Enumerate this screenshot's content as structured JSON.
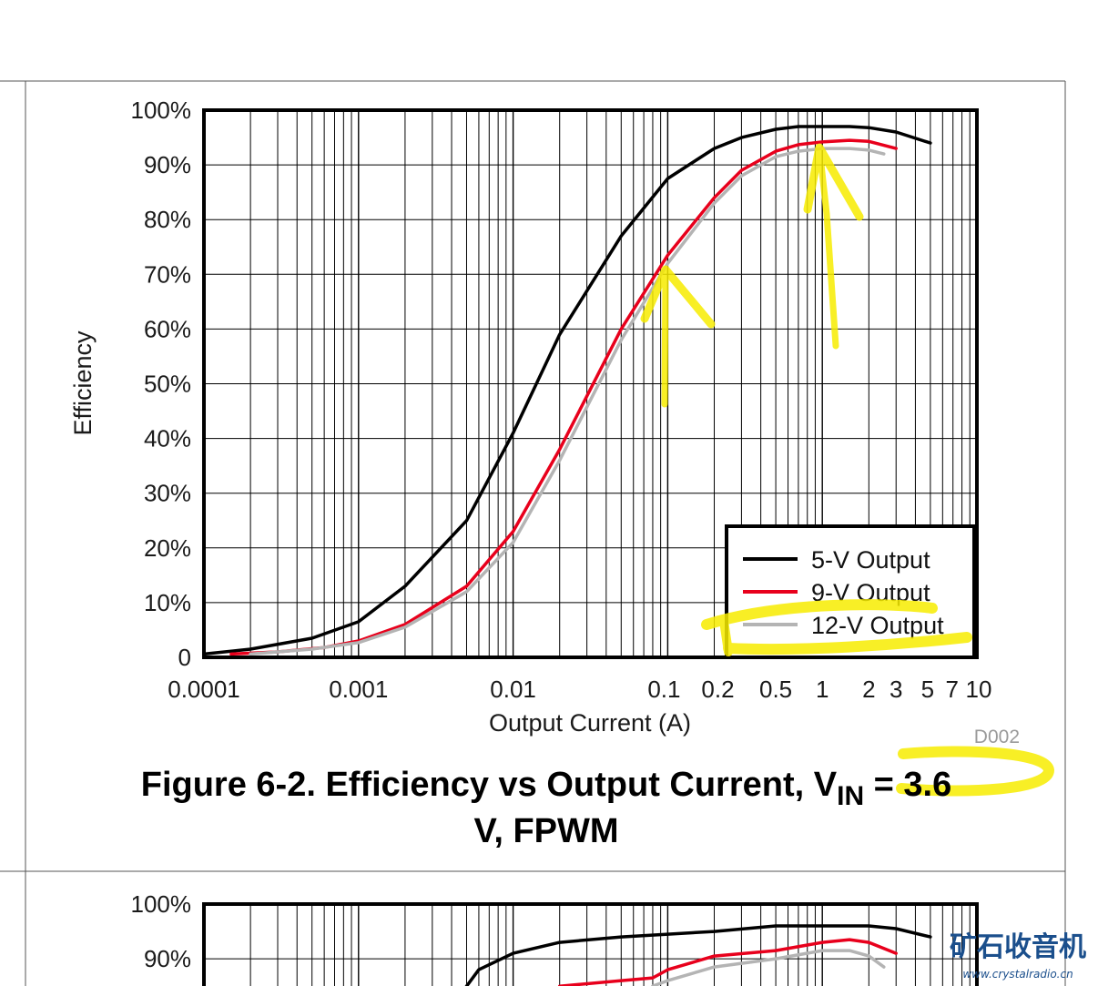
{
  "chart_data": [
    {
      "type": "line",
      "x_scale": "log",
      "xlim": [
        0.0001,
        10
      ],
      "ylim": [
        0,
        100
      ],
      "grid": true,
      "legend_position": "bottom-right",
      "xlabel": "Output Current (A)",
      "ylabel": "Efficiency",
      "x_tick_labels": [
        {
          "value": 0.0001,
          "label": "0.0001"
        },
        {
          "value": 0.001,
          "label": "0.001"
        },
        {
          "value": 0.01,
          "label": "0.01"
        },
        {
          "value": 0.1,
          "label": "0.1"
        },
        {
          "value": 0.2,
          "label": "0.2"
        },
        {
          "value": 0.5,
          "label": "0.5"
        },
        {
          "value": 1,
          "label": "1"
        },
        {
          "value": 2,
          "label": "2"
        },
        {
          "value": 3,
          "label": "3"
        },
        {
          "value": 5,
          "label": "5"
        },
        {
          "value": 7,
          "label": "7"
        },
        {
          "value": 10,
          "label": "10"
        }
      ],
      "y_tick_labels": [
        {
          "value": 0,
          "label": "0"
        },
        {
          "value": 10,
          "label": "10%"
        },
        {
          "value": 20,
          "label": "20%"
        },
        {
          "value": 30,
          "label": "30%"
        },
        {
          "value": 40,
          "label": "40%"
        },
        {
          "value": 50,
          "label": "50%"
        },
        {
          "value": 60,
          "label": "60%"
        },
        {
          "value": 70,
          "label": "70%"
        },
        {
          "value": 80,
          "label": "80%"
        },
        {
          "value": 90,
          "label": "90%"
        },
        {
          "value": 100,
          "label": "100%"
        }
      ],
      "series": [
        {
          "name": "5-V Output",
          "color": "#000000",
          "x": [
            0.0001,
            0.0002,
            0.0005,
            0.001,
            0.002,
            0.005,
            0.01,
            0.02,
            0.05,
            0.1,
            0.2,
            0.3,
            0.5,
            0.7,
            1,
            1.5,
            2,
            3,
            5
          ],
          "y": [
            0.6,
            1.5,
            3.5,
            6.5,
            13,
            25,
            41,
            59,
            77,
            87.5,
            93,
            95,
            96.5,
            97,
            97,
            97,
            96.8,
            96,
            94
          ]
        },
        {
          "name": "9-V Output",
          "color": "#e8001c",
          "x": [
            0.00015,
            0.0003,
            0.0006,
            0.001,
            0.002,
            0.005,
            0.01,
            0.02,
            0.05,
            0.1,
            0.2,
            0.3,
            0.5,
            0.7,
            1,
            1.5,
            2,
            3
          ],
          "y": [
            0.6,
            1.0,
            1.8,
            3,
            6,
            13,
            23,
            38,
            60,
            73.5,
            84,
            89,
            92.5,
            93.7,
            94.2,
            94.5,
            94.3,
            93
          ]
        },
        {
          "name": "12-V Output",
          "color": "#b4b4b4",
          "x": [
            0.0002,
            0.0005,
            0.001,
            0.002,
            0.005,
            0.01,
            0.02,
            0.05,
            0.1,
            0.2,
            0.3,
            0.5,
            0.7,
            1,
            1.5,
            2,
            2.5
          ],
          "y": [
            0.6,
            1.5,
            2.7,
            5.5,
            12,
            21,
            36,
            58,
            72,
            83,
            88,
            91.5,
            92.5,
            93,
            93,
            92.7,
            92
          ]
        }
      ]
    },
    {
      "type": "line",
      "x_scale": "log",
      "xlim": [
        0.0001,
        10
      ],
      "ylim": [
        0,
        100
      ],
      "grid": true,
      "y_tick_labels": [
        {
          "value": 100,
          "label": "100%"
        },
        {
          "value": 90,
          "label": "90%"
        }
      ],
      "series": [
        {
          "name": "5-V Output",
          "color": "#000000",
          "x": [
            0.005,
            0.006,
            0.01,
            0.02,
            0.05,
            0.1,
            0.2,
            0.5,
            1,
            2,
            3,
            5
          ],
          "y": [
            85,
            88,
            91,
            93,
            94,
            94.5,
            95,
            96,
            96,
            96,
            95.5,
            94
          ]
        },
        {
          "name": "9-V Output",
          "color": "#e8001c",
          "x": [
            0.02,
            0.05,
            0.08,
            0.1,
            0.2,
            0.5,
            1,
            1.5,
            2,
            3
          ],
          "y": [
            85,
            86,
            86.5,
            88,
            90.5,
            91.5,
            93,
            93.5,
            93,
            91
          ]
        },
        {
          "name": "12-V Output",
          "color": "#b4b4b4",
          "x": [
            0.08,
            0.1,
            0.2,
            0.5,
            1,
            1.5,
            2,
            2.5
          ],
          "y": [
            85,
            86,
            88.5,
            90,
            91.5,
            91.5,
            90.5,
            88.5
          ]
        }
      ]
    }
  ],
  "caption_line1_a": "Figure 6-2. Efficiency vs Output Current, V",
  "caption_line1_sub": "IN",
  "caption_line1_b": " = 3.6",
  "caption_line2": "V, FPWM",
  "doc_id": "D002",
  "watermark": {
    "name": "矿石收音机",
    "url": "www.crystalradio.cn"
  },
  "highlight_color": "#f7ec00"
}
